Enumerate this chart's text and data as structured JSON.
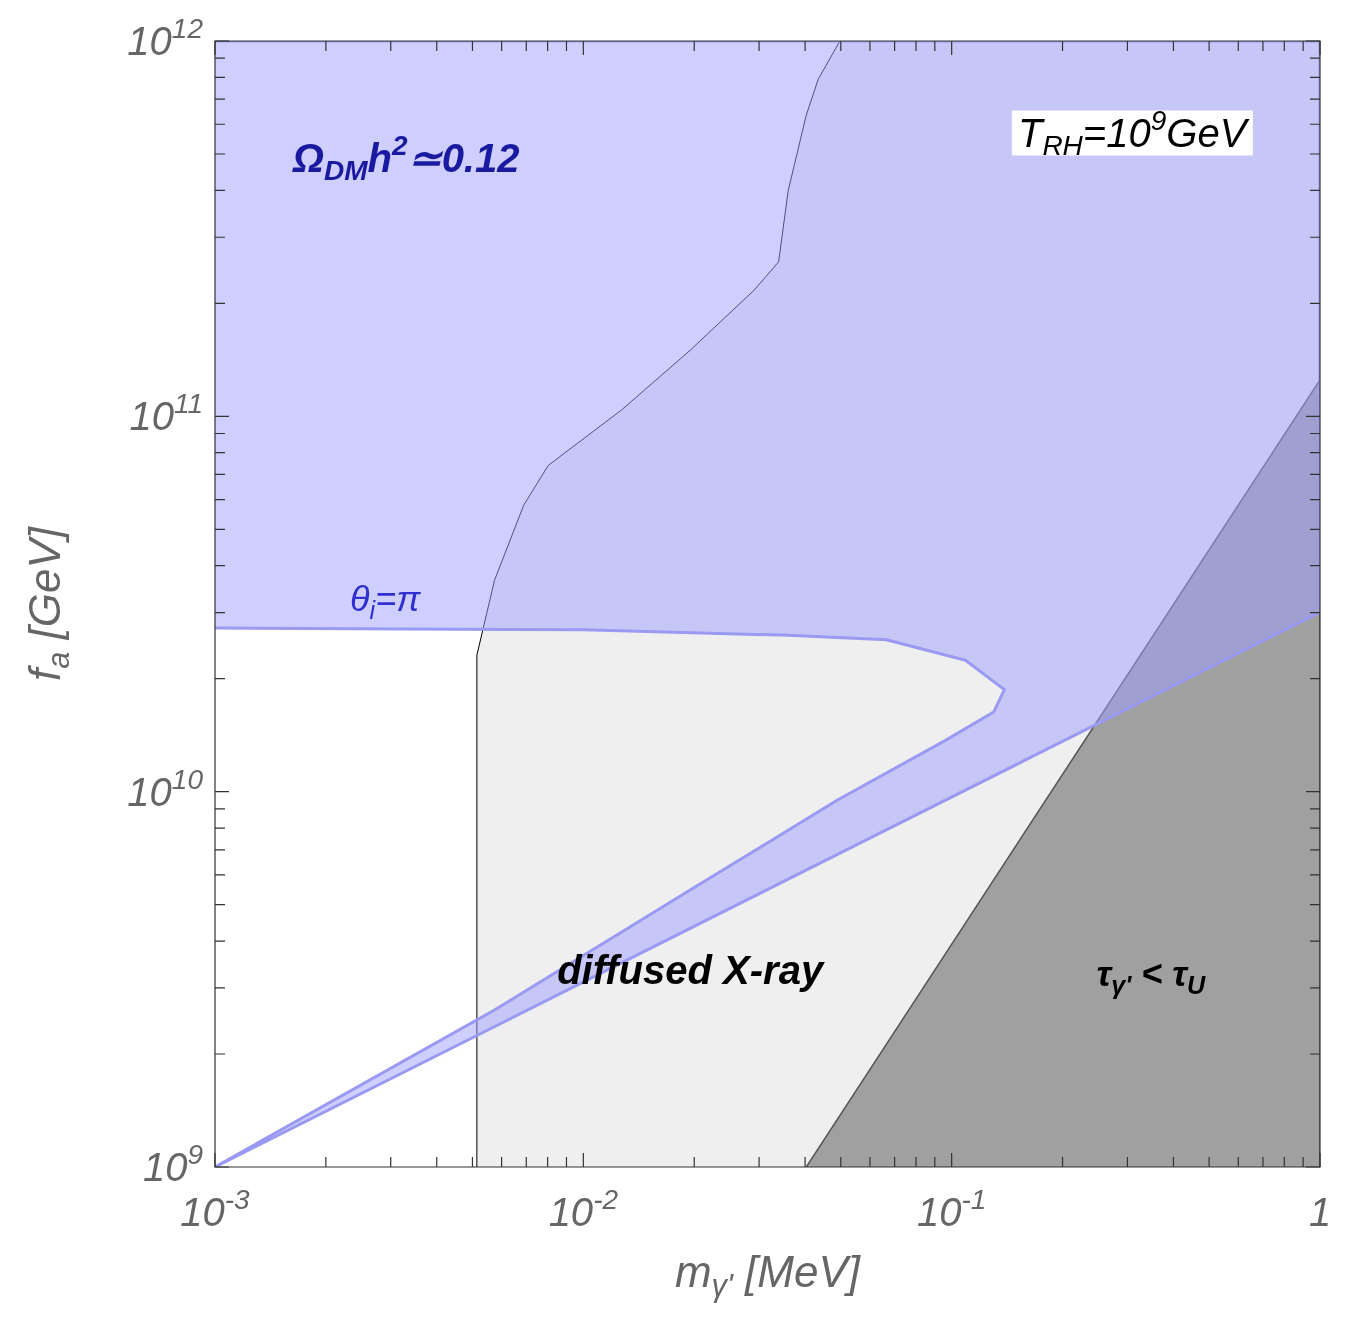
{
  "chart_data": {
    "type": "area",
    "log": "xy",
    "xlabel": "m$_{γ'}$ [MeV]",
    "ylabel": "f$_{a}$ [GeV]",
    "xlim": [
      0.001,
      1
    ],
    "ylim": [
      1000000000.0,
      1000000000000.0
    ],
    "xticks": [
      {
        "value": 0.001,
        "label": "10$^{-3}$"
      },
      {
        "value": 0.002,
        "label": null
      },
      {
        "value": 0.003,
        "label": null
      },
      {
        "value": 0.004,
        "label": null
      },
      {
        "value": 0.005,
        "label": null
      },
      {
        "value": 0.006,
        "label": null
      },
      {
        "value": 0.007,
        "label": null
      },
      {
        "value": 0.008,
        "label": null
      },
      {
        "value": 0.009,
        "label": null
      },
      {
        "value": 0.01,
        "label": "10$^{-2}$"
      },
      {
        "value": 0.02,
        "label": null
      },
      {
        "value": 0.03,
        "label": null
      },
      {
        "value": 0.04,
        "label": null
      },
      {
        "value": 0.05,
        "label": null
      },
      {
        "value": 0.06,
        "label": null
      },
      {
        "value": 0.07,
        "label": null
      },
      {
        "value": 0.08,
        "label": null
      },
      {
        "value": 0.09,
        "label": null
      },
      {
        "value": 0.1,
        "label": "10$^{-1}$"
      },
      {
        "value": 0.2,
        "label": null
      },
      {
        "value": 0.3,
        "label": null
      },
      {
        "value": 0.4,
        "label": null
      },
      {
        "value": 0.5,
        "label": null
      },
      {
        "value": 0.6,
        "label": null
      },
      {
        "value": 0.7,
        "label": null
      },
      {
        "value": 0.8,
        "label": null
      },
      {
        "value": 0.9,
        "label": null
      },
      {
        "value": 1,
        "label": "1"
      }
    ],
    "yticks": [
      {
        "value": 1000000000.0,
        "label": "10$^{9}$"
      },
      {
        "value": 10000000000.0,
        "label": "10$^{10}$"
      },
      {
        "value": 100000000000.0,
        "label": "10$^{11}$"
      },
      {
        "value": 1000000000000.0,
        "label": "10$^{12}$"
      }
    ],
    "series": [
      {
        "color": "#efefef",
        "x": [
          0.00514,
          0.00514,
          0.00574,
          0.00689,
          0.00803,
          0.0127,
          0.0195,
          0.0291,
          0.0339,
          0.036,
          0.0403,
          0.0434,
          0.0497,
          1,
          1
        ],
        "values": [
          1000000000.0,
          23100000000.0,
          36600000000.0,
          58000000000.0,
          74000000000.0,
          104000000000.0,
          150000000000.0,
          217000000000.0,
          258000000000.0,
          400000000000.0,
          635000000000.0,
          790000000000.0,
          1000000000000.0,
          1000000000000.0,
          1000000000.0
        ]
      },
      {
        "color": "#a0a0a0",
        "x": [
          0.0403,
          1,
          1
        ],
        "values": [
          1000000000.0,
          125000000000.0,
          1000000000.0
        ]
      },
      {
        "color": "#a0a0ff",
        "x": [
          0.001,
          0.01,
          0.036,
          0.0665,
          0.109,
          0.139,
          0.13,
          0.0962,
          0.049,
          0.0195,
          0.00574,
          0.001,
          1,
          1,
          0.001
        ],
        "values": [
          27300000000.0,
          27000000000.0,
          26100000000.0,
          25400000000.0,
          22400000000.0,
          18700000000.0,
          16300000000.0,
          13700000000.0,
          9500000000.0,
          5470000000.0,
          2620000000.0,
          1000000000.0,
          30100000000.0,
          1000000000000.0,
          1000000000000.0
        ]
      }
    ],
    "annotations": [
      "Ω$_{DM}$h$^{2}$≃0.12",
      "T$_{RH}$=10$^{9}$GeV",
      "θ$_{i}$=π",
      "diffused X-ray",
      "τ$_{γ'}$ < τ$_{U}$"
    ]
  }
}
